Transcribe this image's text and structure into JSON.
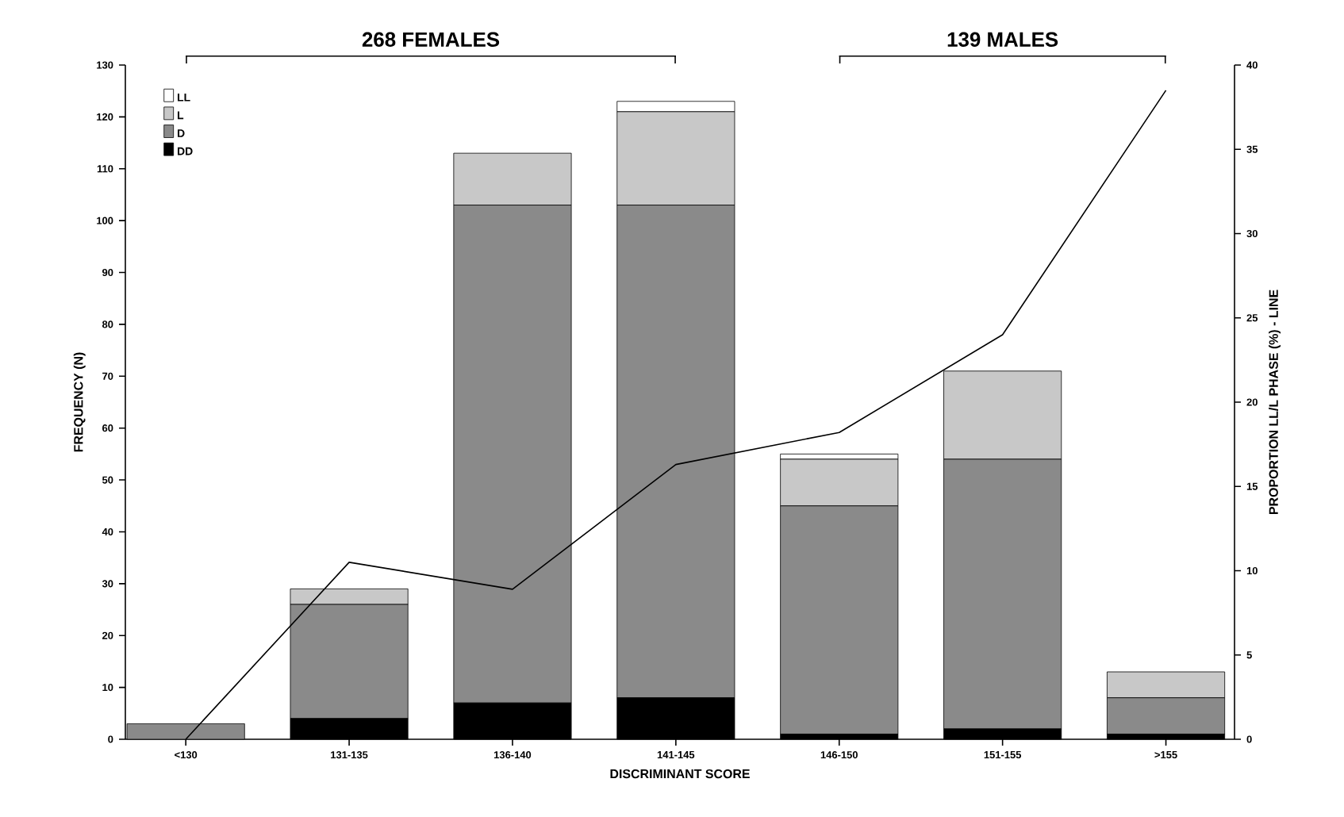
{
  "chart_data": {
    "type": "bar",
    "stacked": true,
    "xlabel": "DISCRIMINANT SCORE",
    "ylabel": "FREQUENCY (N)",
    "y2label": "PROPORTION LL/L PHASE (%) - LINE",
    "annotations": [
      "268 FEMALES",
      "139 MALES"
    ],
    "categories": [
      "<130",
      "131-135",
      "136-140",
      "141-145",
      "146-150",
      "151-155",
      ">155"
    ],
    "series": [
      {
        "name": "DD",
        "color": "#000000",
        "values": [
          0,
          4,
          7,
          8,
          1,
          2,
          1
        ]
      },
      {
        "name": "D",
        "color": "#8a8a8a",
        "values": [
          3,
          22,
          96,
          95,
          44,
          52,
          7
        ]
      },
      {
        "name": "L",
        "color": "#c8c8c8",
        "values": [
          0,
          3,
          10,
          18,
          9,
          17,
          5
        ]
      },
      {
        "name": "LL",
        "color": "#ffffff",
        "values": [
          0,
          0,
          0,
          2,
          1,
          0,
          0
        ]
      },
      {
        "type": "line",
        "axis": "y2",
        "color": "#000000",
        "marker": "none",
        "line_style": "solid",
        "values": [
          0,
          10.5,
          8.9,
          16.3,
          18.2,
          24,
          38.5
        ]
      }
    ],
    "ylim": [
      0,
      130
    ],
    "yticks": [
      0,
      10,
      20,
      30,
      40,
      50,
      60,
      70,
      80,
      90,
      100,
      110,
      120,
      130
    ],
    "y2lim": [
      0,
      40
    ],
    "y2ticks": [
      0,
      5,
      10,
      15,
      20,
      25,
      30,
      35,
      40
    ],
    "legend": "top left",
    "grid": false
  }
}
